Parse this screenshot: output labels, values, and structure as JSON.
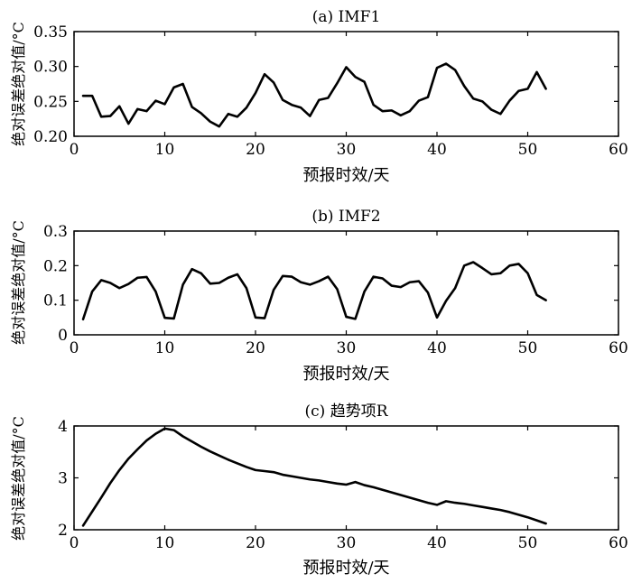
{
  "chart_data": [
    {
      "type": "line",
      "title": "(a) IMF1",
      "xlabel": "预报时效/天",
      "ylabel": "绝对误差绝对值/°C",
      "xlim": [
        0,
        60
      ],
      "ylim": [
        0.2,
        0.35
      ],
      "xticks": [
        0,
        10,
        20,
        30,
        40,
        50,
        60
      ],
      "xtick_labels": [
        "0",
        "10",
        "20",
        "30",
        "40",
        "50",
        "60"
      ],
      "yticks": [
        0.2,
        0.25,
        0.3,
        0.35
      ],
      "ytick_labels": [
        "0.20",
        "0.25",
        "0.30",
        "0.35"
      ],
      "grid": false,
      "series": [
        {
          "x": [
            1,
            2,
            3,
            4,
            5,
            6,
            7,
            8,
            9,
            10,
            11,
            12,
            13,
            14,
            15,
            16,
            17,
            18,
            19,
            20,
            21,
            22,
            23,
            24,
            25,
            26,
            27,
            28,
            29,
            30,
            31,
            32,
            33,
            34,
            35,
            36,
            37,
            38,
            39,
            40,
            41,
            42,
            43,
            44,
            45,
            46,
            47,
            48,
            49,
            50,
            51,
            52
          ],
          "values": [
            0.258,
            0.258,
            0.228,
            0.229,
            0.243,
            0.218,
            0.239,
            0.236,
            0.251,
            0.246,
            0.27,
            0.275,
            0.242,
            0.233,
            0.221,
            0.214,
            0.232,
            0.228,
            0.241,
            0.262,
            0.289,
            0.277,
            0.252,
            0.245,
            0.241,
            0.229,
            0.252,
            0.255,
            0.276,
            0.299,
            0.285,
            0.278,
            0.245,
            0.236,
            0.237,
            0.23,
            0.236,
            0.251,
            0.256,
            0.298,
            0.304,
            0.295,
            0.272,
            0.254,
            0.25,
            0.238,
            0.232,
            0.251,
            0.265,
            0.268,
            0.292,
            0.268
          ]
        }
      ]
    },
    {
      "type": "line",
      "title": "(b) IMF2",
      "xlabel": "预报时效/天",
      "ylabel": "绝对误差绝对值/°C",
      "xlim": [
        0,
        60
      ],
      "ylim": [
        0,
        0.3
      ],
      "xticks": [
        0,
        10,
        20,
        30,
        40,
        50,
        60
      ],
      "xtick_labels": [
        "0",
        "10",
        "20",
        "30",
        "40",
        "50",
        "60"
      ],
      "yticks": [
        0,
        0.1,
        0.2,
        0.3
      ],
      "ytick_labels": [
        "0",
        "0.1",
        "0.2",
        "0.3"
      ],
      "grid": false,
      "series": [
        {
          "x": [
            1,
            2,
            3,
            4,
            5,
            6,
            7,
            8,
            9,
            10,
            11,
            12,
            13,
            14,
            15,
            16,
            17,
            18,
            19,
            20,
            21,
            22,
            23,
            24,
            25,
            26,
            27,
            28,
            29,
            30,
            31,
            32,
            33,
            34,
            35,
            36,
            37,
            38,
            39,
            40,
            41,
            42,
            43,
            44,
            45,
            46,
            47,
            48,
            49,
            50,
            51,
            52
          ],
          "values": [
            0.045,
            0.125,
            0.158,
            0.15,
            0.135,
            0.147,
            0.165,
            0.167,
            0.125,
            0.049,
            0.047,
            0.145,
            0.19,
            0.178,
            0.148,
            0.15,
            0.165,
            0.175,
            0.135,
            0.05,
            0.048,
            0.13,
            0.17,
            0.168,
            0.152,
            0.145,
            0.155,
            0.168,
            0.132,
            0.052,
            0.046,
            0.125,
            0.168,
            0.163,
            0.142,
            0.138,
            0.152,
            0.155,
            0.122,
            0.05,
            0.098,
            0.135,
            0.2,
            0.21,
            0.193,
            0.175,
            0.178,
            0.2,
            0.205,
            0.178,
            0.115,
            0.1
          ]
        }
      ]
    },
    {
      "type": "line",
      "title": "(c) 趋势项R",
      "xlabel": "预报时效/天",
      "ylabel": "绝对误差绝对值/°C",
      "xlim": [
        0,
        60
      ],
      "ylim": [
        2,
        4
      ],
      "xticks": [
        0,
        10,
        20,
        30,
        40,
        50,
        60
      ],
      "xtick_labels": [
        "0",
        "10",
        "20",
        "30",
        "40",
        "50",
        "60"
      ],
      "yticks": [
        2,
        3,
        4
      ],
      "ytick_labels": [
        "2",
        "3",
        "4"
      ],
      "grid": false,
      "series": [
        {
          "x": [
            1,
            2,
            3,
            4,
            5,
            6,
            7,
            8,
            9,
            10,
            11,
            12,
            13,
            14,
            15,
            16,
            17,
            18,
            19,
            20,
            21,
            22,
            23,
            24,
            25,
            26,
            27,
            28,
            29,
            30,
            31,
            32,
            33,
            34,
            35,
            36,
            37,
            38,
            39,
            40,
            41,
            42,
            43,
            44,
            45,
            46,
            47,
            48,
            49,
            50,
            51,
            52
          ],
          "values": [
            2.08,
            2.35,
            2.62,
            2.9,
            3.15,
            3.37,
            3.55,
            3.72,
            3.85,
            3.95,
            3.92,
            3.8,
            3.7,
            3.6,
            3.51,
            3.43,
            3.35,
            3.28,
            3.21,
            3.15,
            3.13,
            3.11,
            3.06,
            3.03,
            3.0,
            2.97,
            2.95,
            2.92,
            2.89,
            2.87,
            2.92,
            2.86,
            2.82,
            2.77,
            2.72,
            2.67,
            2.62,
            2.57,
            2.52,
            2.48,
            2.55,
            2.52,
            2.5,
            2.47,
            2.44,
            2.41,
            2.38,
            2.34,
            2.29,
            2.24,
            2.18,
            2.12
          ]
        }
      ]
    }
  ]
}
